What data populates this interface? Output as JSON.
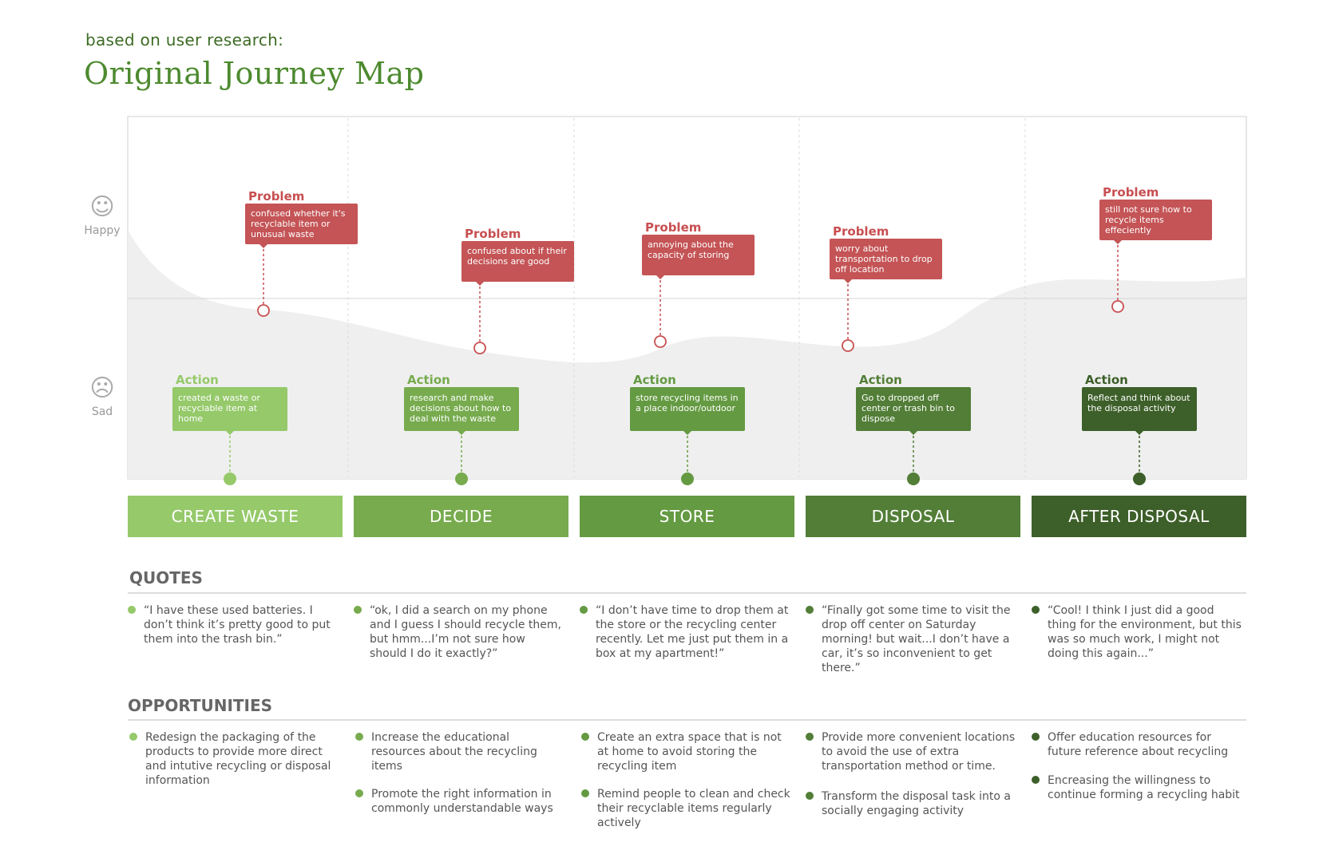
{
  "header": {
    "subtitle": "based on user research:",
    "title": "Original Journey Map"
  },
  "mood": {
    "happy_label": "Happy",
    "sad_label": "Sad",
    "happy_icon": "smiley-face-icon",
    "sad_icon": "sad-face-icon"
  },
  "colors": {
    "problem": "#c45456",
    "stage_1": "#95c96a",
    "stage_2": "#77ab4e",
    "stage_3": "#649a42",
    "stage_4": "#527e37",
    "stage_5": "#3d5f29"
  },
  "stages": [
    {
      "name": "CREATE WASTE",
      "problem_title": "Problem",
      "problem": "confused whether it's recyclable item or unusual waste",
      "action_title": "Action",
      "action": "created a waste or recyclable item at home"
    },
    {
      "name": "DECIDE",
      "problem_title": "Problem",
      "problem": "confused about if their decisions are good",
      "action_title": "Action",
      "action": "research and make decisions about how to deal with the waste"
    },
    {
      "name": "STORE",
      "problem_title": "Problem",
      "problem": "annoying about the capacity of storing",
      "action_title": "Action",
      "action": "store recycling items in a place indoor/outdoor"
    },
    {
      "name": "DISPOSAL",
      "problem_title": "Problem",
      "problem": "worry about transportation to drop off location",
      "action_title": "Action",
      "action": "Go to dropped off center or trash bin to dispose"
    },
    {
      "name": "AFTER DISPOSAL",
      "problem_title": "Problem",
      "problem": "still not sure how to recycle items effeciently",
      "action_title": "Action",
      "action": "Reflect and think about the disposal activity"
    }
  ],
  "quotes": {
    "title": "QUOTES",
    "items": [
      "“I have these used batteries. I don’t think it’s pretty good to put them into the trash bin.”",
      "“ok, I did a search on my phone and I guess I should recycle them, but hmm...I’m not sure how should I do it exactly?”",
      "“I don’t have time to drop them at the store or the recycling center recently. Let me just put them in a box at my apartment!”",
      "“Finally got some time to visit the drop off center on Saturday morning! but wait...I don’t have a car, it’s so inconvenient to get there.”",
      "“Cool! I think I just did a good thing for the environment, but this was so much work, I might not doing this again...”"
    ]
  },
  "opportunities": {
    "title": "OPPORTUNITIES",
    "columns": [
      [
        "Redesign the packaging of the products to provide more direct and intutive recycling or disposal information"
      ],
      [
        "Increase the educational resources about the recycling items",
        "Promote the right information in commonly understandable ways"
      ],
      [
        "Create an extra space that is not at home to avoid storing the recycling item",
        "Remind people to clean and check their recyclable items regularly actively"
      ],
      [
        "Provide more convenient locations to avoid the use of extra transportation method or time.",
        "Transform the disposal task into a socially engaging activity"
      ],
      [
        "Offer education resources for future reference about recycling",
        "Encreasing the willingness to continue forming a recycling habit"
      ]
    ]
  }
}
